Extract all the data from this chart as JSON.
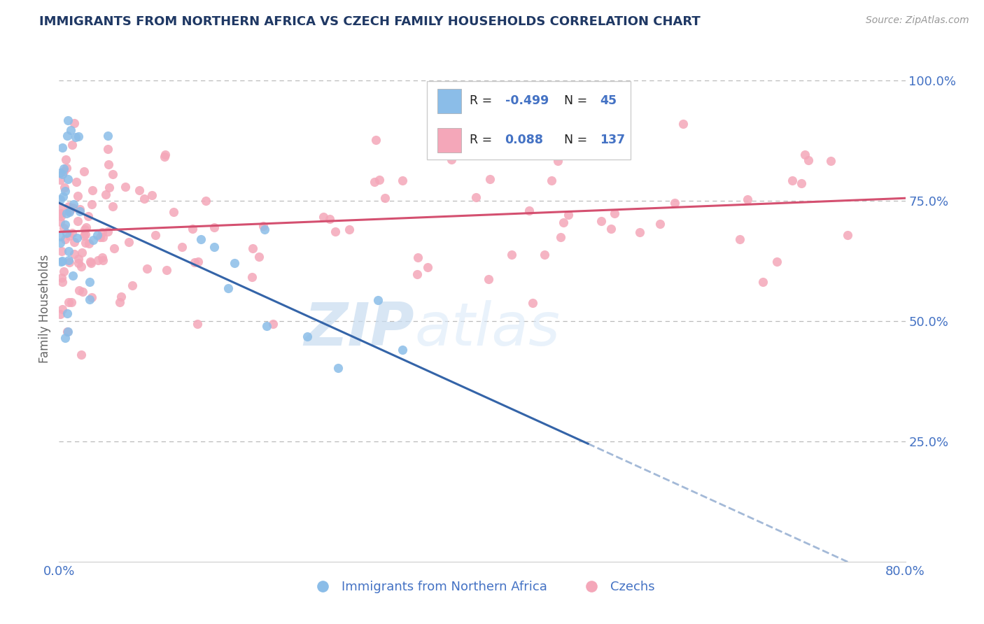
{
  "title": "IMMIGRANTS FROM NORTHERN AFRICA VS CZECH FAMILY HOUSEHOLDS CORRELATION CHART",
  "source": "Source: ZipAtlas.com",
  "ylabel": "Family Households",
  "xlim": [
    0.0,
    0.8
  ],
  "ylim": [
    0.0,
    1.05
  ],
  "color_blue": "#8BBDE8",
  "color_pink": "#F4A7B9",
  "line_blue": "#3464A8",
  "line_pink": "#D45070",
  "watermark_zip": "ZIP",
  "watermark_atlas": "atlas",
  "title_color": "#1F3864",
  "axis_color": "#4472C4",
  "grid_color": "#BBBBBB",
  "legend_r1_label": "R =",
  "legend_r1_val": "-0.499",
  "legend_n1_label": "N =",
  "legend_n1_val": "45",
  "legend_r2_label": "R =",
  "legend_r2_val": "0.088",
  "legend_n2_label": "N =",
  "legend_n2_val": "137",
  "blue_line_x0": 0.0,
  "blue_line_y0": 0.745,
  "blue_line_x1": 0.5,
  "blue_line_y1": 0.245,
  "blue_line_solid_end": 0.5,
  "blue_line_dash_end": 0.8,
  "pink_line_x0": 0.0,
  "pink_line_y0": 0.685,
  "pink_line_x1": 0.8,
  "pink_line_y1": 0.755
}
